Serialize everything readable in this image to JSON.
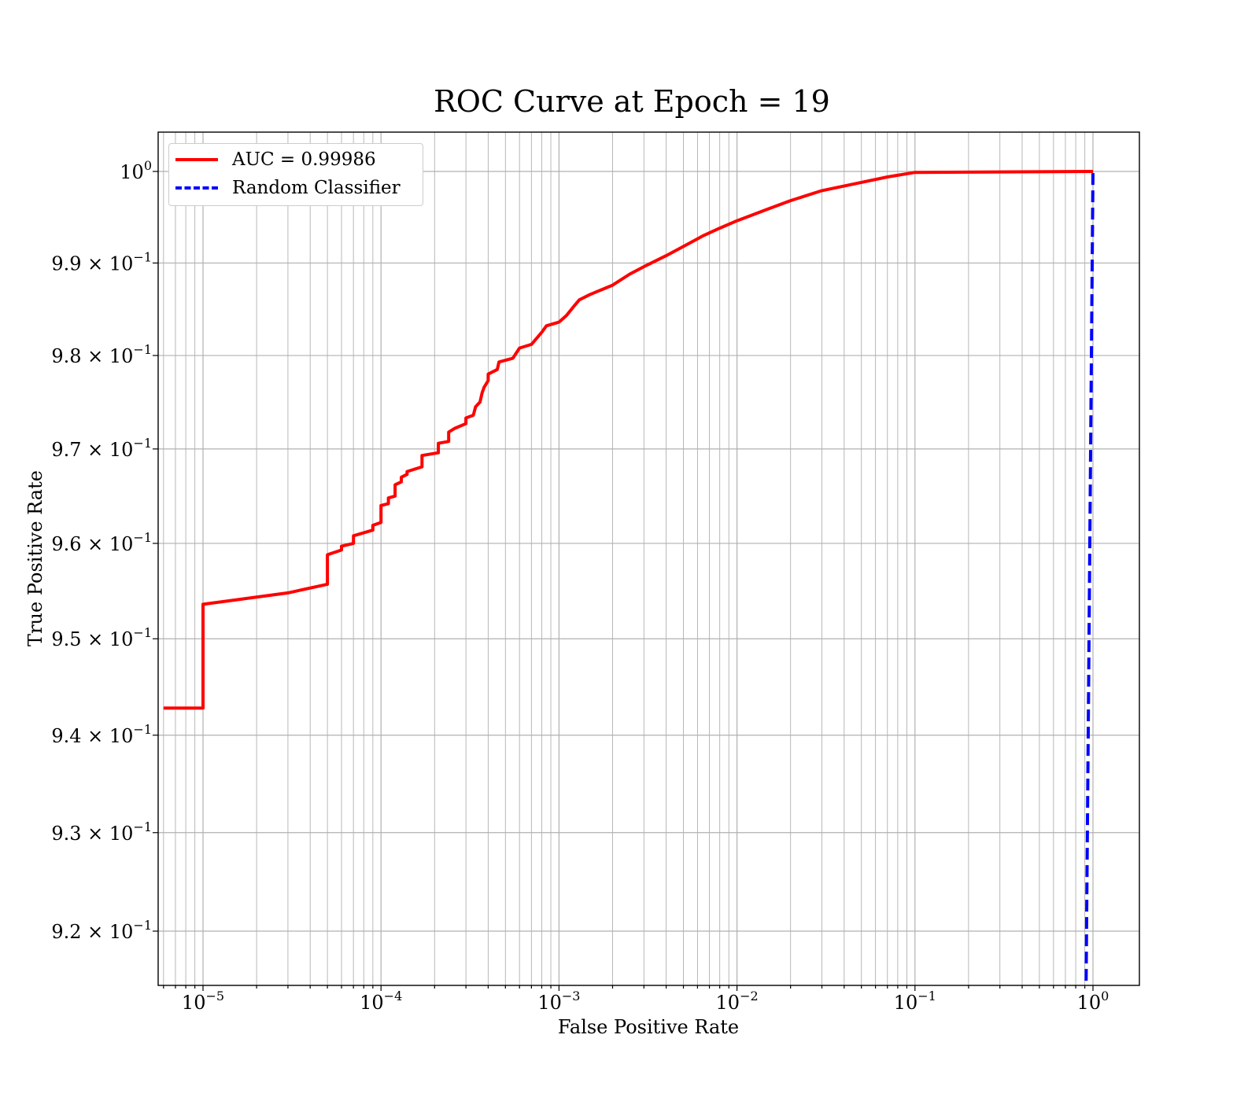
{
  "chart_data": {
    "type": "line",
    "title": "ROC Curve at Epoch = 19",
    "xlabel": "False Positive Rate",
    "ylabel": "True Positive Rate",
    "xscale": "log",
    "yscale": "log",
    "xlim": [
      6e-06,
      1.8
    ],
    "ylim": [
      0.915,
      1.004
    ],
    "grid": "on (major and minor)",
    "legend_position": "top-left",
    "x_ticks": [
      {
        "value": 1e-05,
        "base": "10",
        "exp": "−5"
      },
      {
        "value": 0.0001,
        "base": "10",
        "exp": "−4"
      },
      {
        "value": 0.001,
        "base": "10",
        "exp": "−3"
      },
      {
        "value": 0.01,
        "base": "10",
        "exp": "−2"
      },
      {
        "value": 0.1,
        "base": "10",
        "exp": "−1"
      },
      {
        "value": 1,
        "base": "10",
        "exp": "0"
      }
    ],
    "y_ticks": [
      {
        "value": 1.0,
        "mant": "",
        "base": "10",
        "exp": "0"
      },
      {
        "value": 0.99,
        "mant": "9.9 × ",
        "base": "10",
        "exp": "−1"
      },
      {
        "value": 0.98,
        "mant": "9.8 × ",
        "base": "10",
        "exp": "−1"
      },
      {
        "value": 0.97,
        "mant": "9.7 × ",
        "base": "10",
        "exp": "−1"
      },
      {
        "value": 0.96,
        "mant": "9.6 × ",
        "base": "10",
        "exp": "−1"
      },
      {
        "value": 0.95,
        "mant": "9.5 × ",
        "base": "10",
        "exp": "−1"
      },
      {
        "value": 0.94,
        "mant": "9.4 × ",
        "base": "10",
        "exp": "−1"
      },
      {
        "value": 0.93,
        "mant": "9.3 × ",
        "base": "10",
        "exp": "−1"
      },
      {
        "value": 0.92,
        "mant": "9.2 × ",
        "base": "10",
        "exp": "−1"
      }
    ],
    "series": [
      {
        "name": "AUC = 0.99986",
        "color": "#ff0000",
        "style": "solid",
        "points": [
          [
            6e-06,
            0.9428
          ],
          [
            1e-05,
            0.9428
          ],
          [
            1e-05,
            0.9536
          ],
          [
            3e-05,
            0.9548
          ],
          [
            5e-05,
            0.9557
          ],
          [
            5e-05,
            0.9588
          ],
          [
            6e-05,
            0.9593
          ],
          [
            6e-05,
            0.9597
          ],
          [
            7e-05,
            0.96
          ],
          [
            7e-05,
            0.9608
          ],
          [
            9e-05,
            0.9614
          ],
          [
            9e-05,
            0.9619
          ],
          [
            0.0001,
            0.9622
          ],
          [
            0.0001,
            0.964
          ],
          [
            0.00011,
            0.9642
          ],
          [
            0.00011,
            0.9648
          ],
          [
            0.00012,
            0.965
          ],
          [
            0.00012,
            0.9662
          ],
          [
            0.00013,
            0.9665
          ],
          [
            0.00013,
            0.967
          ],
          [
            0.00014,
            0.9673
          ],
          [
            0.00014,
            0.9676
          ],
          [
            0.00017,
            0.9681
          ],
          [
            0.00017,
            0.9693
          ],
          [
            0.00021,
            0.9696
          ],
          [
            0.00021,
            0.9706
          ],
          [
            0.00024,
            0.9708
          ],
          [
            0.00024,
            0.9718
          ],
          [
            0.00026,
            0.9722
          ],
          [
            0.0003,
            0.9727
          ],
          [
            0.0003,
            0.9733
          ],
          [
            0.00033,
            0.9736
          ],
          [
            0.00034,
            0.9745
          ],
          [
            0.00036,
            0.975
          ],
          [
            0.00037,
            0.976
          ],
          [
            0.00038,
            0.9766
          ],
          [
            0.0004,
            0.9773
          ],
          [
            0.0004,
            0.978
          ],
          [
            0.00045,
            0.9785
          ],
          [
            0.00046,
            0.9793
          ],
          [
            0.00055,
            0.9797
          ],
          [
            0.0006,
            0.9808
          ],
          [
            0.0007,
            0.9812
          ],
          [
            0.0008,
            0.9825
          ],
          [
            0.00085,
            0.9832
          ],
          [
            0.001,
            0.9836
          ],
          [
            0.0011,
            0.9843
          ],
          [
            0.0012,
            0.9852
          ],
          [
            0.0013,
            0.986
          ],
          [
            0.0015,
            0.9866
          ],
          [
            0.002,
            0.9876
          ],
          [
            0.0025,
            0.9888
          ],
          [
            0.003,
            0.9896
          ],
          [
            0.004,
            0.9908
          ],
          [
            0.005,
            0.9918
          ],
          [
            0.0065,
            0.993
          ],
          [
            0.008,
            0.9938
          ],
          [
            0.01,
            0.9946
          ],
          [
            0.015,
            0.9959
          ],
          [
            0.02,
            0.9968
          ],
          [
            0.03,
            0.9979
          ],
          [
            0.05,
            0.9988
          ],
          [
            0.07,
            0.9994
          ],
          [
            0.1,
            0.9999
          ],
          [
            1.0,
            1.0
          ]
        ]
      },
      {
        "name": "Random Classifier",
        "color": "#0000ff",
        "style": "dashed",
        "points": [
          [
            0.915,
            0.915
          ],
          [
            1.0,
            1.0
          ]
        ]
      }
    ]
  }
}
